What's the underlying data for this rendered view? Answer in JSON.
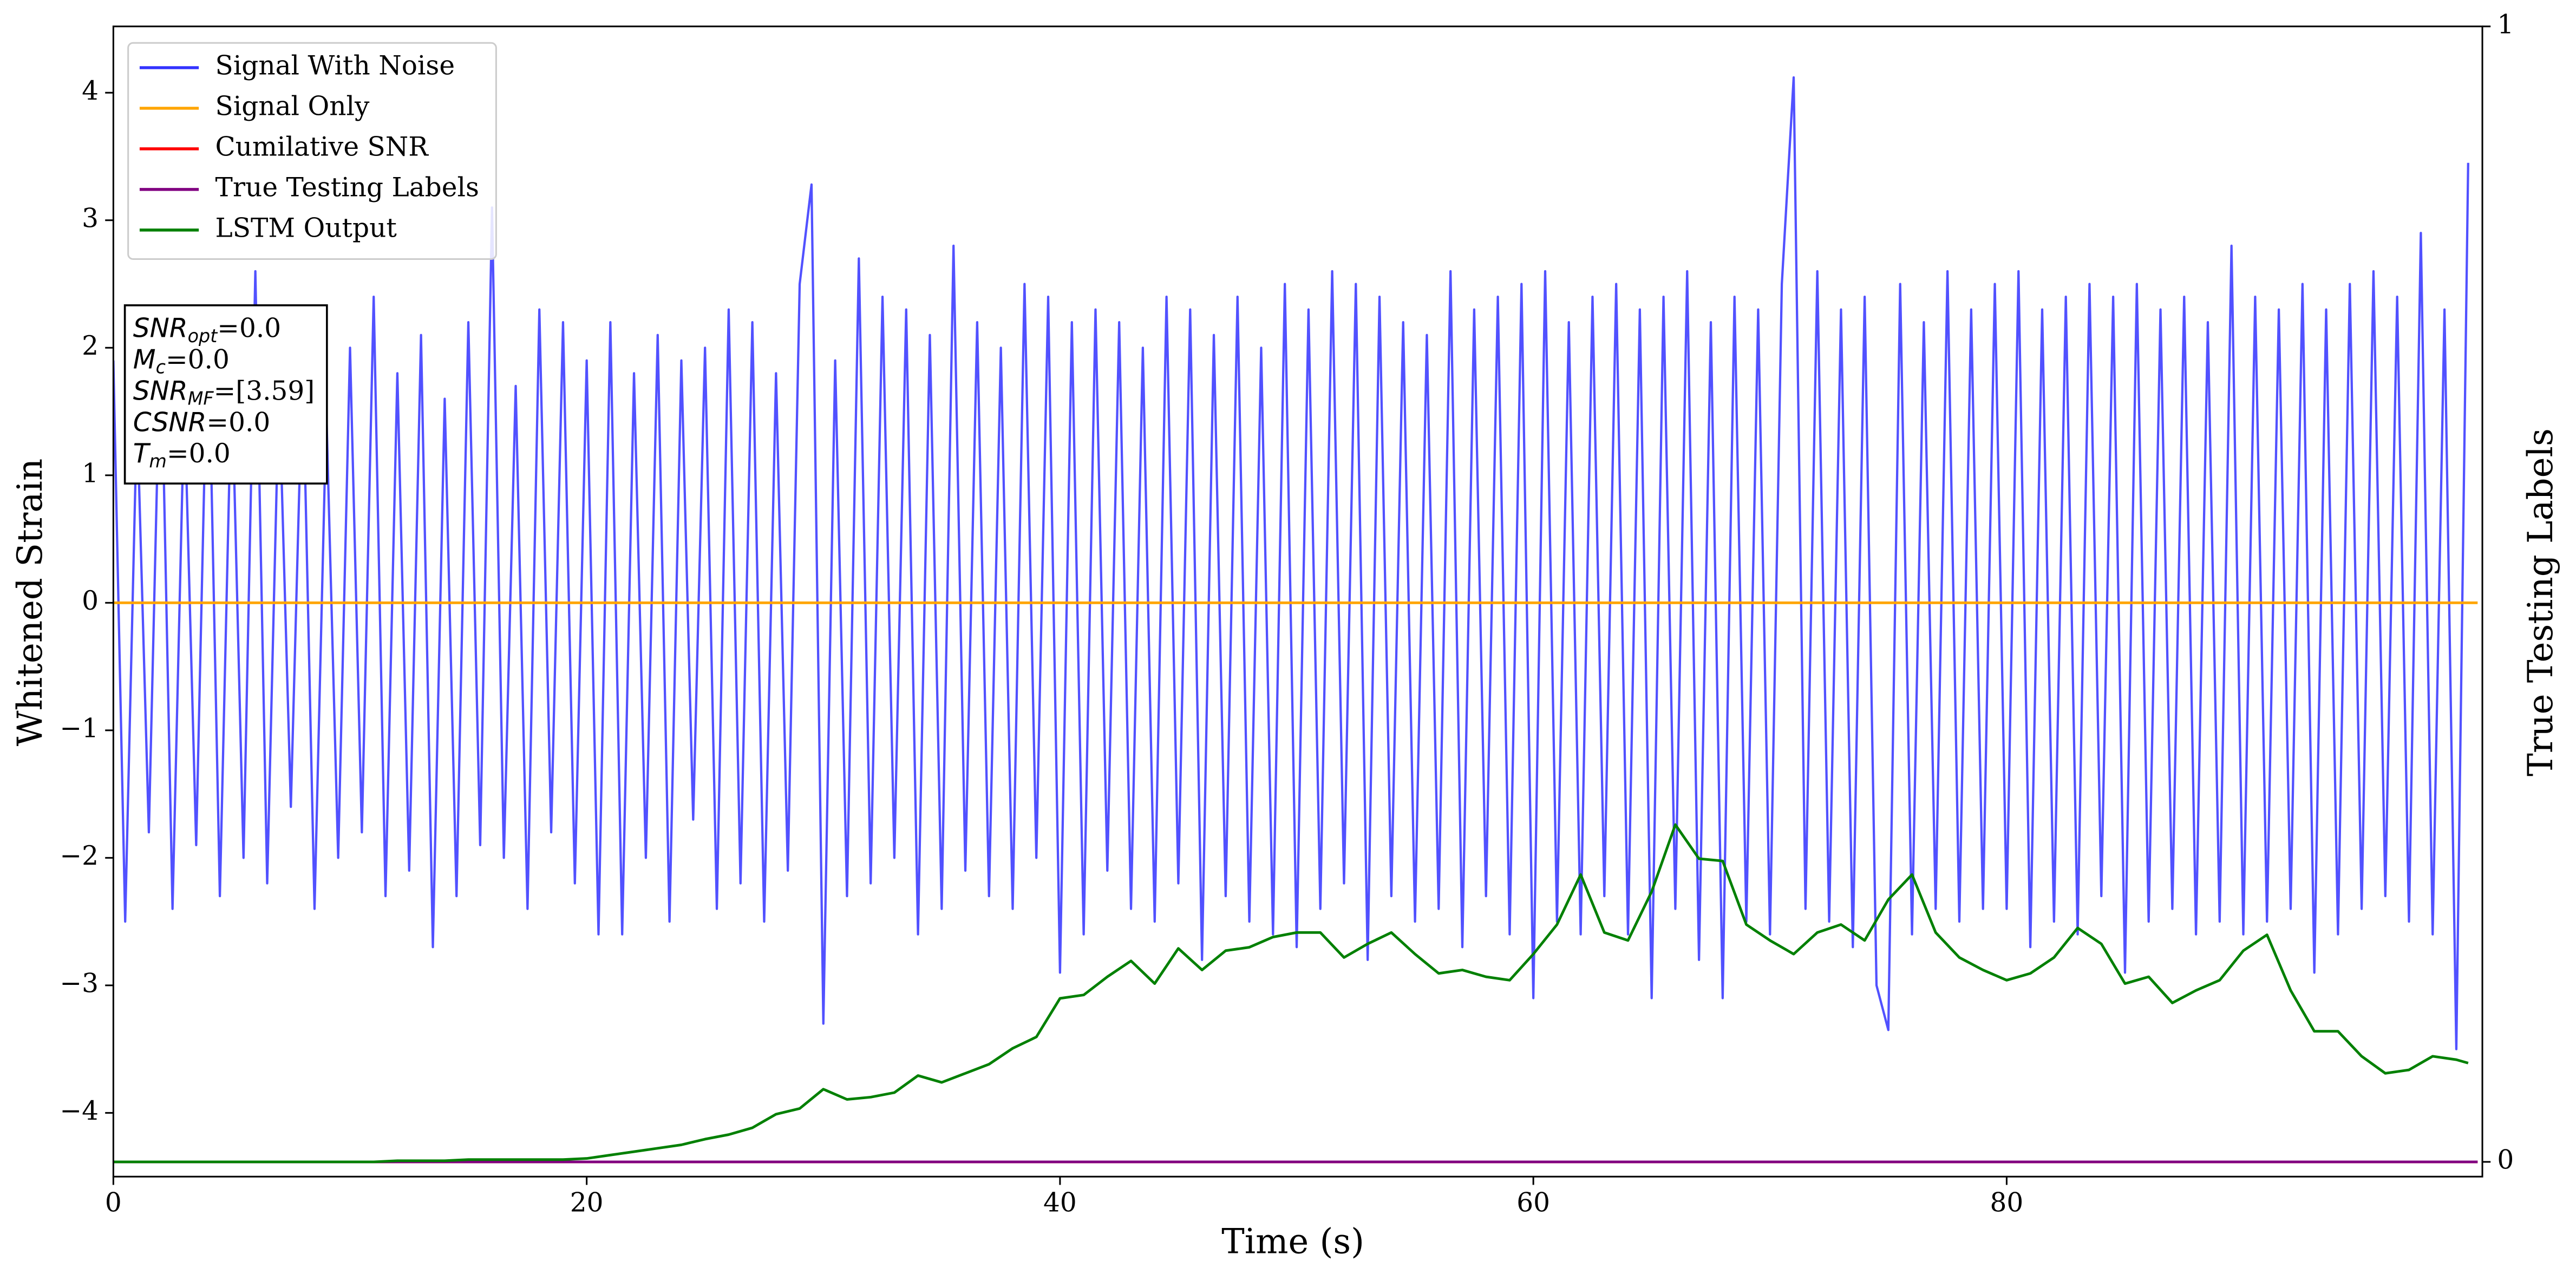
{
  "chart_data": {
    "type": "line",
    "xlabel": "Time (s)",
    "ylabel": "Whitened Strain",
    "y2label": "True Testing Labels",
    "xlim": [
      0,
      100.1
    ],
    "ylim": [
      -4.5,
      4.52
    ],
    "y2lim": [
      -0.013,
      1
    ],
    "xticks": [
      0,
      20,
      40,
      60,
      80
    ],
    "yticks": [
      {
        "value": -4,
        "label": "−4"
      },
      {
        "value": -3,
        "label": "−3"
      },
      {
        "value": -2,
        "label": "−2"
      },
      {
        "value": -1,
        "label": "−1"
      },
      0,
      1,
      2,
      3,
      4
    ],
    "y2ticks": [
      0,
      1
    ],
    "legend": "upper-left",
    "annotations": [
      {
        "base": "SNR",
        "sub": "opt",
        "text": "=0.0"
      },
      {
        "base": "M",
        "sub": "c",
        "text": "=0.0"
      },
      {
        "base": "SNR",
        "sub": "MF",
        "text": "=[3.59]"
      },
      {
        "base": "CSNR",
        "sub": null,
        "text": "=0.0"
      },
      {
        "base": "T",
        "sub": "m",
        "text": "=0.0"
      }
    ],
    "series": [
      {
        "name": "Signal With Noise",
        "color": "#3333ff",
        "axis": "y",
        "x": [
          0,
          0.5,
          1,
          1.5,
          2,
          2.5,
          3,
          3.5,
          4,
          4.5,
          5,
          5.5,
          6,
          6.5,
          7,
          7.5,
          8,
          8.5,
          9,
          9.5,
          10,
          10.5,
          11,
          11.5,
          12,
          12.5,
          13,
          13.5,
          14,
          14.5,
          15,
          15.5,
          16,
          16.5,
          17,
          17.5,
          18,
          18.5,
          19,
          19.5,
          20,
          20.5,
          21,
          21.5,
          22,
          22.5,
          23,
          23.5,
          24,
          24.5,
          25,
          25.5,
          26,
          26.5,
          27,
          27.5,
          28,
          28.5,
          29,
          29.5,
          30,
          30.5,
          31,
          31.5,
          32,
          32.5,
          33,
          33.5,
          34,
          34.5,
          35,
          35.5,
          36,
          36.5,
          37,
          37.5,
          38,
          38.5,
          39,
          39.5,
          40,
          40.5,
          41,
          41.5,
          42,
          42.5,
          43,
          43.5,
          44,
          44.5,
          45,
          45.5,
          46,
          46.5,
          47,
          47.5,
          48,
          48.5,
          49,
          49.5,
          50,
          50.5,
          51,
          51.5,
          52,
          52.5,
          53,
          53.5,
          54,
          54.5,
          55,
          55.5,
          56,
          56.5,
          57,
          57.5,
          58,
          58.5,
          59,
          59.5,
          60,
          60.5,
          61,
          61.5,
          62,
          62.5,
          63,
          63.5,
          64,
          64.5,
          65,
          65.5,
          66,
          66.5,
          67,
          67.5,
          68,
          68.5,
          69,
          69.5,
          70,
          70.5,
          71,
          71.5,
          72,
          72.5,
          73,
          73.5,
          74,
          74.5,
          75,
          75.5,
          76,
          76.5,
          77,
          77.5,
          78,
          78.5,
          79,
          79.5,
          80,
          80.5,
          81,
          81.5,
          82,
          82.5,
          83,
          83.5,
          84,
          84.5,
          85,
          85.5,
          86,
          86.5,
          87,
          87.5,
          88,
          88.5,
          89,
          89.5,
          90,
          90.5,
          91,
          91.5,
          92,
          92.5,
          93,
          93.5,
          94,
          94.5,
          95,
          95.5,
          96,
          96.5,
          97,
          97.5,
          98,
          98.5,
          99,
          99.5
        ],
        "values": [
          1.9,
          -2.5,
          1.5,
          -1.8,
          2.2,
          -2.4,
          1.6,
          -1.9,
          2.3,
          -2.3,
          1.8,
          -2.0,
          2.6,
          -2.2,
          1.7,
          -1.6,
          1.9,
          -2.4,
          1.5,
          -2.0,
          2.0,
          -1.8,
          2.4,
          -2.3,
          1.8,
          -2.1,
          2.1,
          -2.7,
          1.6,
          -2.3,
          2.2,
          -1.9,
          3.1,
          -2.0,
          1.7,
          -2.4,
          2.3,
          -1.8,
          2.2,
          -2.2,
          1.9,
          -2.6,
          2.2,
          -2.6,
          1.8,
          -2.0,
          2.1,
          -2.5,
          1.9,
          -1.7,
          2.0,
          -2.4,
          2.3,
          -2.2,
          2.2,
          -2.5,
          1.8,
          -2.1,
          2.5,
          3.28,
          -3.3,
          1.9,
          -2.3,
          2.7,
          -2.2,
          2.4,
          -2.0,
          2.3,
          -2.6,
          2.1,
          -2.4,
          2.8,
          -2.1,
          2.2,
          -2.3,
          2.0,
          -2.4,
          2.5,
          -2.0,
          2.4,
          -2.9,
          2.2,
          -2.6,
          2.3,
          -2.1,
          2.2,
          -2.4,
          2.0,
          -2.5,
          2.4,
          -2.2,
          2.3,
          -2.8,
          2.1,
          -2.3,
          2.4,
          -2.5,
          2.0,
          -2.6,
          2.5,
          -2.7,
          2.3,
          -2.4,
          2.6,
          -2.2,
          2.5,
          -2.8,
          2.4,
          -2.3,
          2.2,
          -2.5,
          2.1,
          -2.4,
          2.6,
          -2.7,
          2.3,
          -2.3,
          2.4,
          -2.6,
          2.5,
          -3.1,
          2.6,
          -2.5,
          2.2,
          -2.6,
          2.4,
          -2.3,
          2.5,
          -2.6,
          2.3,
          -3.1,
          2.4,
          -2.4,
          2.6,
          -2.8,
          2.2,
          -3.1,
          2.4,
          -2.5,
          2.3,
          -2.6,
          2.5,
          4.12,
          -2.4,
          2.6,
          -2.5,
          2.3,
          -2.7,
          2.4,
          -3.0,
          -3.35,
          2.5,
          -2.6,
          2.2,
          -2.4,
          2.6,
          -2.5,
          2.3,
          -2.4,
          2.5,
          -2.4,
          2.6,
          -2.7,
          2.3,
          -2.5,
          2.4,
          -2.6,
          2.5,
          -2.3,
          2.4,
          -2.9,
          2.5,
          -2.5,
          2.3,
          -2.4,
          2.4,
          -2.6,
          2.2,
          -2.5,
          2.8,
          -2.6,
          2.4,
          -2.5,
          2.3,
          -2.4,
          2.5,
          -2.9,
          2.3,
          -2.6,
          2.5,
          -2.4,
          2.6,
          -2.3,
          2.4,
          -2.5,
          2.9,
          -2.6,
          2.3,
          -3.5,
          3.45
        ]
      },
      {
        "name": "Signal Only",
        "color": "#ffa500",
        "axis": "y",
        "x": [
          0,
          99.9
        ],
        "values": [
          0,
          0
        ]
      },
      {
        "name": "Cumilative SNR",
        "color": "#ff0000",
        "axis": "y2",
        "x": [
          0,
          99.9
        ],
        "values": [
          0,
          0
        ]
      },
      {
        "name": "True Testing Labels",
        "color": "#800080",
        "axis": "y2",
        "x": [
          0,
          99.9
        ],
        "values": [
          0,
          0
        ]
      },
      {
        "name": "LSTM Output",
        "color": "#008000",
        "axis": "y2",
        "x": [
          0,
          1,
          2,
          3,
          4,
          5,
          6,
          7,
          8,
          9,
          10,
          11,
          12,
          13,
          14,
          15,
          16,
          17,
          18,
          19,
          20,
          21,
          22,
          23,
          24,
          25,
          26,
          27,
          28,
          29,
          30,
          31,
          32,
          33,
          34,
          35,
          36,
          37,
          38,
          39,
          40,
          41,
          42,
          43,
          44,
          45,
          46,
          47,
          48,
          49,
          50,
          51,
          52,
          53,
          54,
          55,
          56,
          57,
          58,
          59,
          60,
          61,
          62,
          63,
          64,
          65,
          66,
          67,
          68,
          69,
          70,
          71,
          72,
          73,
          74,
          75,
          76,
          77,
          78,
          79,
          80,
          81,
          82,
          83,
          84,
          85,
          86,
          87,
          88,
          89,
          90,
          91,
          92,
          93,
          94,
          95,
          96,
          97,
          98,
          99,
          99.5
        ],
        "values": [
          0,
          0,
          0,
          0,
          0,
          0,
          0,
          0,
          0,
          0,
          0,
          0,
          0.001,
          0.001,
          0.001,
          0.002,
          0.002,
          0.002,
          0.002,
          0.002,
          0.003,
          0.006,
          0.009,
          0.012,
          0.015,
          0.02,
          0.024,
          0.03,
          0.042,
          0.047,
          0.064,
          0.055,
          0.057,
          0.061,
          0.076,
          0.07,
          0.078,
          0.086,
          0.1,
          0.11,
          0.144,
          0.147,
          0.163,
          0.177,
          0.157,
          0.188,
          0.169,
          0.186,
          0.189,
          0.198,
          0.202,
          0.202,
          0.18,
          0.192,
          0.202,
          0.183,
          0.166,
          0.169,
          0.163,
          0.16,
          0.183,
          0.209,
          0.253,
          0.202,
          0.195,
          0.238,
          0.297,
          0.267,
          0.265,
          0.209,
          0.195,
          0.183,
          0.202,
          0.209,
          0.195,
          0.231,
          0.253,
          0.202,
          0.18,
          0.169,
          0.16,
          0.166,
          0.18,
          0.206,
          0.192,
          0.157,
          0.163,
          0.14,
          0.151,
          0.16,
          0.186,
          0.2,
          0.151,
          0.115,
          0.115,
          0.093,
          0.078,
          0.081,
          0.093,
          0.09,
          0.087
        ]
      }
    ]
  }
}
